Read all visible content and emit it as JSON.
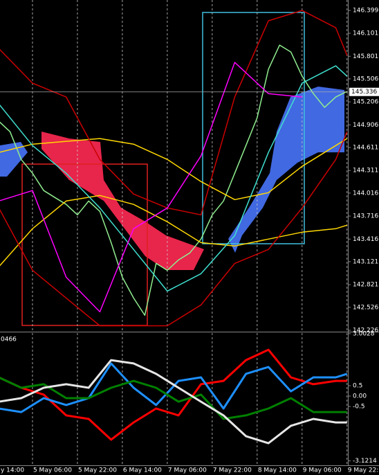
{
  "chart_data": [
    {
      "type": "line",
      "xlim": [
        4.43,
        128.3
      ],
      "ylim": [
        142.217,
        146.535
      ],
      "yticks": [
        146.399,
        146.101,
        145.801,
        {
          "value": 145.506,
          "label": "145.506"
        },
        145.206,
        144.906,
        144.611,
        144.311,
        {
          "value": 144.016,
          "label": "144.016"
        },
        143.716,
        143.416,
        143.121,
        142.821,
        142.526,
        142.226
      ],
      "current_price": 145.336,
      "series": [
        {
          "color": "#90ee90",
          "x": [
            4,
            8,
            12,
            16,
            20,
            24,
            28,
            32,
            36,
            40,
            44,
            48,
            52,
            56,
            60,
            64,
            68,
            72,
            76,
            80,
            84,
            88,
            92,
            96,
            100,
            104,
            108,
            112,
            116,
            120,
            124,
            128
          ],
          "values": [
            144.953,
            144.817,
            144.455,
            144.275,
            144.049,
            143.958,
            143.868,
            143.732,
            143.913,
            143.777,
            143.37,
            142.918,
            142.647,
            142.421,
            143.099,
            143.009,
            143.144,
            143.235,
            143.416,
            143.732,
            143.913,
            144.275,
            144.636,
            144.998,
            145.631,
            145.947,
            145.857,
            145.54,
            145.314,
            145.134,
            145.269,
            145.342
          ]
        },
        {
          "color": "#ffd700",
          "x": [
            4,
            16,
            28,
            40,
            52,
            64,
            76,
            88,
            100,
            112,
            124,
            128
          ],
          "values": [
            144.546,
            144.654,
            144.691,
            144.727,
            144.654,
            144.455,
            144.166,
            143.931,
            144.021,
            144.365,
            144.636,
            144.727
          ]
        },
        {
          "color": "#ffd700",
          "x": [
            4,
            16,
            28,
            40,
            52,
            64,
            76,
            88,
            100,
            112,
            124,
            128
          ],
          "values": [
            143.054,
            143.551,
            143.913,
            143.985,
            143.868,
            143.642,
            143.37,
            143.325,
            143.416,
            143.506,
            143.551,
            143.597
          ]
        },
        {
          "color": "#40e0d0",
          "x": [
            4,
            16,
            28,
            40,
            52,
            64,
            76,
            88,
            100,
            112,
            124,
            128
          ],
          "values": [
            145.179,
            144.636,
            144.275,
            143.822,
            143.28,
            142.737,
            142.964,
            143.461,
            144.546,
            145.45,
            145.676,
            145.54
          ]
        },
        {
          "color": "#cc0000",
          "x": [
            4,
            16,
            28,
            40,
            52,
            64,
            76,
            88,
            100,
            112,
            124,
            128
          ],
          "values": [
            145.902,
            145.45,
            145.269,
            144.455,
            144.003,
            143.822,
            143.732,
            145.269,
            146.264,
            146.399,
            146.173,
            145.812
          ]
        },
        {
          "color": "#cc0000",
          "x": [
            4,
            16,
            28,
            40,
            52,
            64,
            76,
            88,
            100,
            112,
            124,
            128
          ],
          "values": [
            143.822,
            143.009,
            142.647,
            142.285,
            142.285,
            142.285,
            142.557,
            143.099,
            143.28,
            143.822,
            144.455,
            144.817
          ]
        },
        {
          "color": "#ff00ff",
          "x": [
            4,
            16,
            28,
            40,
            52,
            64,
            76,
            88,
            100,
            112,
            124,
            128
          ],
          "values": [
            143.913,
            144.049,
            142.918,
            142.466,
            143.551,
            143.822,
            144.501,
            145.721,
            145.314,
            145.269,
            null,
            null
          ]
        }
      ]
    },
    {
      "type": "line",
      "indicator_label": "0466",
      "xlim": [
        4.43,
        128.3
      ],
      "xticks": [
        {
          "value": 0,
          "label": "y 14:00"
        },
        {
          "value": 16,
          "label": "5 May 06:00"
        },
        {
          "value": 32,
          "label": "5 May 22:00"
        },
        {
          "value": 48,
          "label": "6 May 14:00"
        },
        {
          "value": 64,
          "label": "7 May 06:00"
        },
        {
          "value": 80,
          "label": "7 May 22:00"
        },
        {
          "value": 96,
          "label": "8 May 14:00"
        },
        {
          "value": 112,
          "label": "9 May 06:00"
        },
        {
          "value": 128,
          "label": "9 May 22:00"
        }
      ],
      "ylim": [
        -3.333,
        3.033
      ],
      "yticks": [
        3.0028,
        0.5,
        {
          "value": 0,
          "label": "0.00"
        },
        -0.5,
        -3.1214
      ],
      "series": [
        {
          "color": "#ff0000",
          "x": [
            4,
            12,
            20,
            28,
            36,
            44,
            52,
            60,
            68,
            76,
            84,
            92,
            100,
            108,
            116,
            124,
            128
          ],
          "values": [
            0.9,
            0.4,
            0.07,
            -0.93,
            -1.1,
            -2.1,
            -1.27,
            -0.6,
            -0.93,
            0.57,
            0.73,
            1.73,
            2.23,
            0.9,
            0.57,
            0.73,
            0.73
          ]
        },
        {
          "color": "#1e90ff",
          "x": [
            4,
            12,
            20,
            28,
            36,
            44,
            52,
            60,
            68,
            76,
            84,
            92,
            100,
            108,
            116,
            124,
            128
          ],
          "values": [
            -0.6,
            -0.77,
            -0.1,
            -0.43,
            -0.1,
            1.57,
            0.4,
            -0.43,
            0.73,
            0.9,
            -0.6,
            1.07,
            1.4,
            0.23,
            0.9,
            0.9,
            1.07
          ]
        },
        {
          "color": "#008000",
          "x": [
            4,
            12,
            20,
            28,
            36,
            44,
            52,
            60,
            68,
            76,
            84,
            92,
            100,
            108,
            116,
            124,
            128
          ],
          "values": [
            0.9,
            0.4,
            0.57,
            -0.1,
            -0.1,
            0.4,
            0.73,
            0.4,
            -0.27,
            0.07,
            -1.1,
            -0.93,
            -0.6,
            -0.1,
            -0.77,
            -0.77,
            -0.77
          ]
        },
        {
          "color": "#e6e6e6",
          "x": [
            4,
            12,
            20,
            28,
            36,
            44,
            52,
            60,
            68,
            76,
            84,
            92,
            100,
            108,
            116,
            124,
            128
          ],
          "values": [
            -0.27,
            -0.1,
            0.4,
            0.57,
            0.4,
            1.73,
            1.57,
            1.07,
            0.4,
            -0.27,
            -0.93,
            -1.93,
            -2.27,
            -1.43,
            -1.1,
            -1.27,
            -1.27
          ]
        }
      ]
    }
  ]
}
